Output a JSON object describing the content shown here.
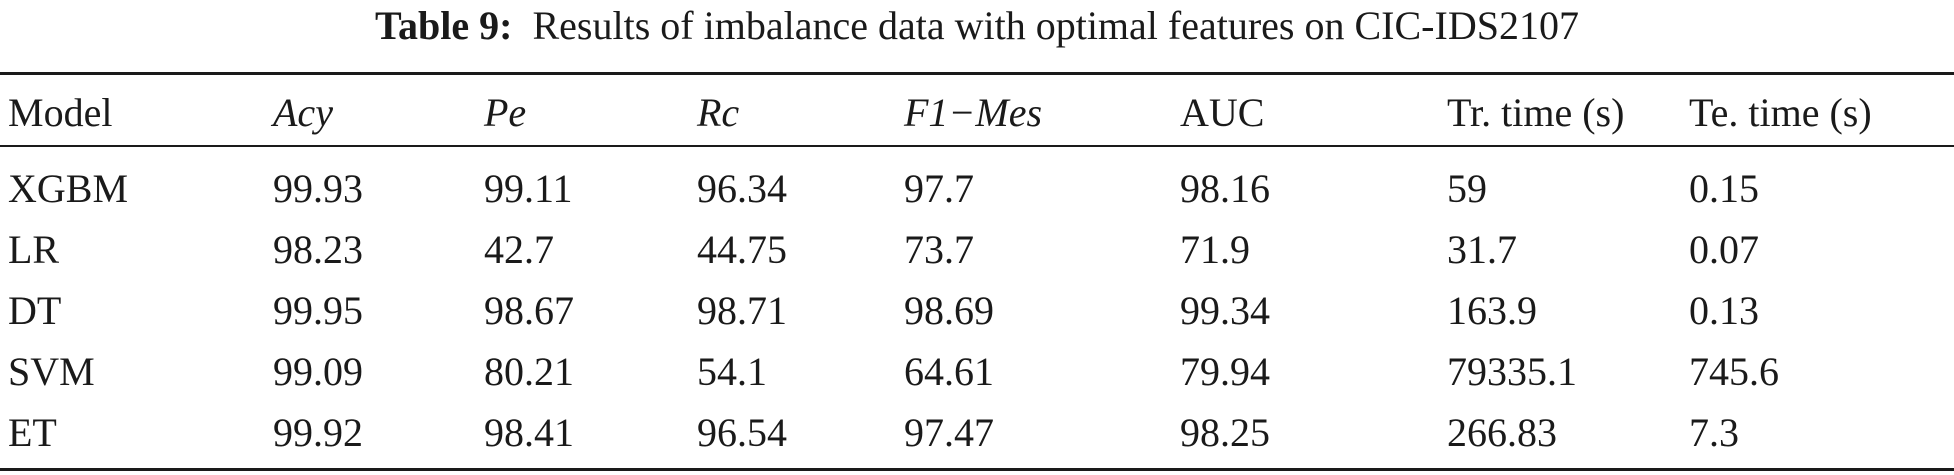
{
  "caption": {
    "label": "Table 9:",
    "text": "Results of imbalance data with optimal features on CIC-IDS2107"
  },
  "table": {
    "headers": [
      "Model",
      "Acy",
      "Pe",
      "Rc",
      "F1−Mes",
      "AUC",
      "Tr. time (s)",
      "Te. time (s)"
    ],
    "rows": [
      [
        "XGBM",
        "99.93",
        "99.11",
        "96.34",
        "97.7",
        "98.16",
        "59",
        "0.15"
      ],
      [
        "LR",
        "98.23",
        "42.7",
        "44.75",
        "73.7",
        "71.9",
        "31.7",
        "0.07"
      ],
      [
        "DT",
        "99.95",
        "98.67",
        "98.71",
        "98.69",
        "99.34",
        "163.9",
        "0.13"
      ],
      [
        "SVM",
        "99.09",
        "80.21",
        "54.1",
        "64.61",
        "79.94",
        "79335.1",
        "745.6"
      ],
      [
        "ET",
        "99.92",
        "98.41",
        "96.54",
        "97.47",
        "98.25",
        "266.83",
        "7.3"
      ]
    ]
  }
}
